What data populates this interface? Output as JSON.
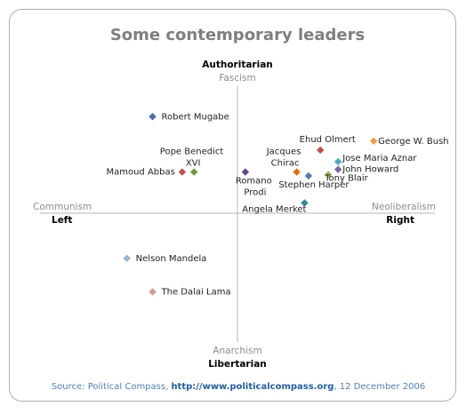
{
  "chart_data": {
    "type": "scatter",
    "title": "Some contemporary leaders",
    "axis_labels": {
      "top": [
        "Authoritarian",
        "Fascism"
      ],
      "bottom": [
        "Anarchism",
        "Libertarian"
      ],
      "left": [
        "Communism",
        "Left"
      ],
      "right": [
        "Neoliberalism",
        "Right"
      ]
    },
    "labels": [
      "Robert Mugabe",
      "Pope Benedict XVI",
      "Mamoud Abbas",
      "Romano Prodi",
      "Jacques Chirac",
      "Ehud Olmert",
      "George W. Bush",
      "Jose Maria Aznar",
      "John Howard",
      "Tony Blair",
      "Stephen Harper",
      "Angela Merket",
      "Nelson Mandela",
      "The Dalai Lama"
    ],
    "x": [
      -4.3,
      -2.2,
      -2.8,
      0.4,
      3.0,
      4.2,
      6.9,
      5.1,
      5.1,
      4.6,
      3.6,
      3.4,
      -5.6,
      -4.3
    ],
    "values": [
      7.5,
      3.2,
      3.2,
      3.2,
      3.2,
      4.9,
      5.6,
      4.0,
      3.4,
      3.0,
      2.9,
      0.8,
      -3.5,
      -6.1
    ],
    "colors": [
      "#4f6fa8",
      "#77933c",
      "#c0504d",
      "#604a7b",
      "#e46c0a",
      "#c0504d",
      "#f79646",
      "#4bacc6",
      "#8064a2",
      "#9bbb59",
      "#4f81bd",
      "#31859c",
      "#95b3d7",
      "#d99694"
    ],
    "xlim": [
      -10,
      10
    ],
    "ylim": [
      -10,
      10
    ],
    "source": [
      "Source: Political Compass, ",
      "http://www.politicalcompass.org",
      ", 12 December 2006"
    ]
  }
}
